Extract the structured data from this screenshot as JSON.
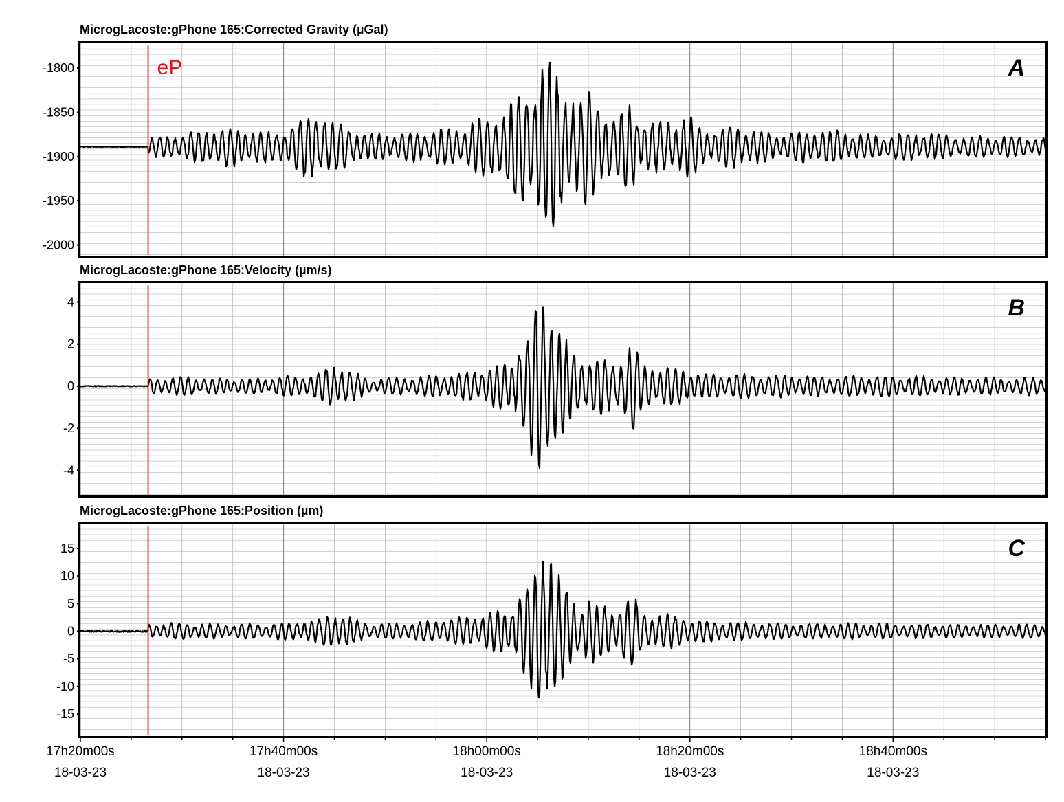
{
  "chart_data": [
    {
      "type": "line",
      "title": "MicrogLacoste:gPhone 165:Corrected Gravity (µGal)",
      "panel_label": "A",
      "annotation": "eP",
      "ylim": [
        -2012,
        -1772
      ],
      "yticks": [
        {
          "value": -1800,
          "label": "-1800"
        },
        {
          "value": -1850,
          "label": "-1850"
        },
        {
          "value": -1900,
          "label": "-1900"
        },
        {
          "value": -1950,
          "label": "-1950"
        },
        {
          "value": -2000,
          "label": "-2000"
        }
      ],
      "baseline": -1889,
      "pre_event_amplitude": 0.4,
      "envelope": [
        [
          0,
          10
        ],
        [
          4,
          14
        ],
        [
          8,
          22
        ],
        [
          14,
          16
        ],
        [
          19,
          40
        ],
        [
          21,
          26
        ],
        [
          25,
          14
        ],
        [
          30,
          17
        ],
        [
          35,
          22
        ],
        [
          40,
          44
        ],
        [
          42,
          68
        ],
        [
          43,
          80
        ],
        [
          44,
          92
        ],
        [
          45,
          96
        ],
        [
          46,
          76
        ],
        [
          47,
          60
        ],
        [
          48,
          50
        ],
        [
          49,
          64
        ],
        [
          50,
          58
        ],
        [
          52,
          32
        ],
        [
          54,
          52
        ],
        [
          55,
          30
        ],
        [
          57,
          26
        ],
        [
          60,
          36
        ],
        [
          62,
          18
        ],
        [
          65,
          24
        ],
        [
          70,
          14
        ],
        [
          75,
          20
        ],
        [
          80,
          13
        ],
        [
          86,
          16
        ],
        [
          90,
          12
        ],
        [
          95,
          12
        ],
        [
          100,
          10
        ]
      ],
      "grid": true
    },
    {
      "type": "line",
      "title": "MicrogLacoste:gPhone 165:Velocity (µm/s)",
      "panel_label": "B",
      "ylim": [
        -5.2,
        4.9
      ],
      "yticks": [
        {
          "value": 4,
          "label": "4"
        },
        {
          "value": 2,
          "label": "2"
        },
        {
          "value": 0,
          "label": "0"
        },
        {
          "value": -2,
          "label": "-2"
        },
        {
          "value": -4,
          "label": "-4"
        }
      ],
      "baseline": 0,
      "pre_event_amplitude": 0.02,
      "envelope": [
        [
          0,
          0.35
        ],
        [
          4,
          0.45
        ],
        [
          8,
          0.35
        ],
        [
          14,
          0.4
        ],
        [
          19,
          0.6
        ],
        [
          21,
          1.15
        ],
        [
          23,
          0.6
        ],
        [
          25,
          0.35
        ],
        [
          30,
          0.45
        ],
        [
          35,
          0.6
        ],
        [
          40,
          1.1
        ],
        [
          42,
          2.2
        ],
        [
          43,
          3.3
        ],
        [
          44,
          4.4
        ],
        [
          45,
          4.1
        ],
        [
          46,
          2.8
        ],
        [
          47,
          1.6
        ],
        [
          48,
          1.4
        ],
        [
          49,
          1.6
        ],
        [
          50,
          1.3
        ],
        [
          52,
          1.1
        ],
        [
          54,
          2.2
        ],
        [
          55,
          1.1
        ],
        [
          57,
          1.0
        ],
        [
          60,
          0.8
        ],
        [
          62,
          0.55
        ],
        [
          65,
          0.6
        ],
        [
          70,
          0.5
        ],
        [
          75,
          0.45
        ],
        [
          80,
          0.5
        ],
        [
          86,
          0.45
        ],
        [
          90,
          0.4
        ],
        [
          95,
          0.4
        ],
        [
          100,
          0.4
        ]
      ],
      "grid": true
    },
    {
      "type": "line",
      "title": "MicrogLacoste:gPhone 165:Position (µm)",
      "panel_label": "C",
      "ylim": [
        -19,
        19.5
      ],
      "yticks": [
        {
          "value": 15,
          "label": "15"
        },
        {
          "value": 10,
          "label": "10"
        },
        {
          "value": 5,
          "label": "5"
        },
        {
          "value": 0,
          "label": "0"
        },
        {
          "value": -5,
          "label": "-5"
        },
        {
          "value": -10,
          "label": "-10"
        },
        {
          "value": -15,
          "label": "-15"
        }
      ],
      "baseline": 0,
      "pre_event_amplitude": 0.15,
      "envelope": [
        [
          0,
          1.3
        ],
        [
          4,
          1.5
        ],
        [
          8,
          1.2
        ],
        [
          14,
          1.4
        ],
        [
          19,
          2.0
        ],
        [
          21,
          3.6
        ],
        [
          23,
          2.0
        ],
        [
          25,
          1.3
        ],
        [
          30,
          1.6
        ],
        [
          35,
          2.5
        ],
        [
          40,
          4.0
        ],
        [
          42,
          7.5
        ],
        [
          43,
          12.0
        ],
        [
          44,
          16.5
        ],
        [
          45,
          14.5
        ],
        [
          46,
          9.0
        ],
        [
          47,
          6.0
        ],
        [
          48,
          5.2
        ],
        [
          49,
          6.5
        ],
        [
          50,
          5.0
        ],
        [
          52,
          4.0
        ],
        [
          54,
          6.5
        ],
        [
          55,
          3.5
        ],
        [
          57,
          3.2
        ],
        [
          60,
          2.6
        ],
        [
          62,
          1.8
        ],
        [
          65,
          1.8
        ],
        [
          70,
          1.4
        ],
        [
          75,
          1.4
        ],
        [
          80,
          1.4
        ],
        [
          86,
          1.3
        ],
        [
          90,
          1.2
        ],
        [
          95,
          1.2
        ],
        [
          100,
          1.2
        ]
      ],
      "grid": true
    }
  ],
  "time_axis": {
    "start": "17h20m00s",
    "end": "18h55m00s",
    "ep_time": "17h26m40s",
    "ticks": [
      {
        "time": "17h20m00s",
        "date": "18-03-23"
      },
      {
        "time": "17h40m00s",
        "date": "18-03-23"
      },
      {
        "time": "18h00m00s",
        "date": "18-03-23"
      },
      {
        "time": "18h20m00s",
        "date": "18-03-23"
      },
      {
        "time": "18h40m00s",
        "date": "18-03-23"
      }
    ]
  },
  "colors": {
    "trace": "#000000",
    "ep_line": "#e3141b",
    "grid_minor": "#b8b8b8",
    "grid_major": "#7a7a7a",
    "frame": "#000000"
  }
}
